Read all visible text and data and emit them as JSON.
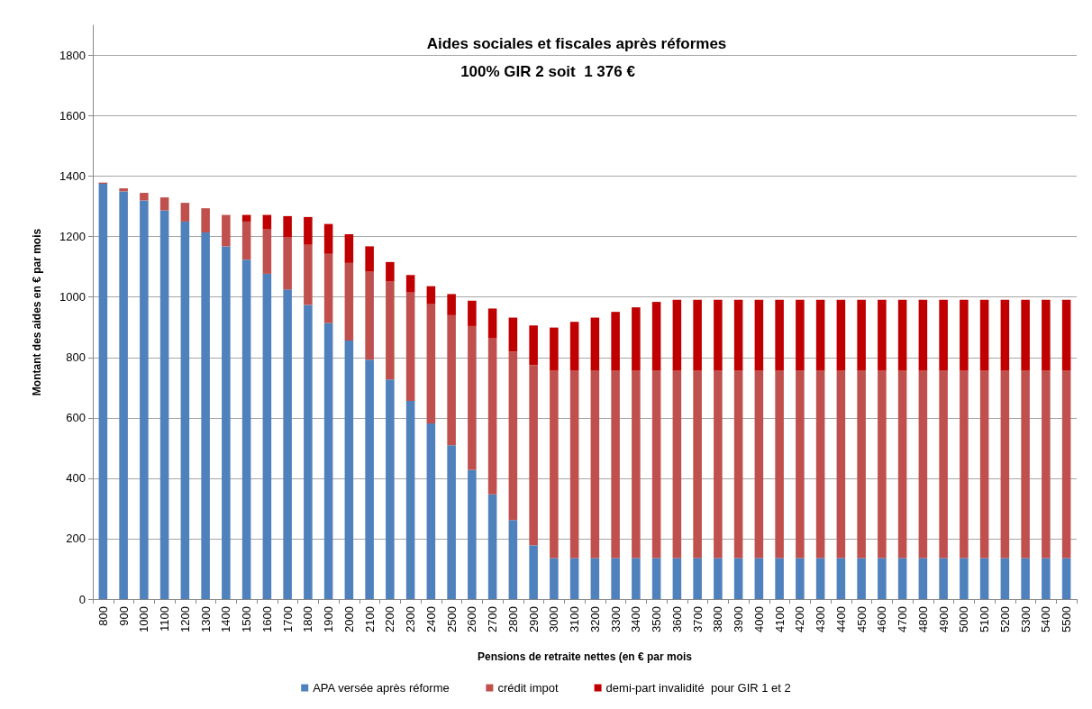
{
  "chart_data": {
    "type": "bar",
    "title": "Aides sociales et fiscales après réformes",
    "subtitle": "100% GIR 2 soit  1 376 €",
    "xlabel": "Pensions de retraite nettes (en € par mois",
    "ylabel": "Montant des aides en € par mois",
    "categories": [
      "800",
      "900",
      "1000",
      "1100",
      "1200",
      "1300",
      "1400",
      "1500",
      "1600",
      "1700",
      "1800",
      "1900",
      "2000",
      "2100",
      "2200",
      "2300",
      "2400",
      "2500",
      "2600",
      "2700",
      "2800",
      "2900",
      "3000",
      "3100",
      "3200",
      "3300",
      "3400",
      "3500",
      "3600",
      "3700",
      "3800",
      "3900",
      "4000",
      "4100",
      "4200",
      "4300",
      "4400",
      "4500",
      "4600",
      "4700",
      "4800",
      "4900",
      "5000",
      "5100",
      "5200",
      "5300",
      "5400",
      "5500"
    ],
    "stacked": true,
    "ylim": [
      0,
      1900
    ],
    "yticks": [
      0,
      200,
      400,
      600,
      800,
      1000,
      1200,
      1400,
      1600,
      1800
    ],
    "grid": "y",
    "legend": "bottom",
    "series": [
      {
        "name": "APA versée après réforme",
        "color": "#4f81bd",
        "values": [
          1375,
          1350,
          1320,
          1287,
          1250,
          1214,
          1168,
          1124,
          1077,
          1025,
          974,
          914,
          856,
          793,
          727,
          656,
          582,
          509,
          428,
          347,
          262,
          178,
          136,
          136,
          136,
          136,
          136,
          136,
          136,
          136,
          136,
          136,
          136,
          136,
          136,
          136,
          136,
          136,
          136,
          136,
          136,
          136,
          136,
          136,
          136,
          136,
          136,
          136
        ]
      },
      {
        "name": "crédit impot",
        "color": "#c0504d",
        "values": [
          4,
          10,
          25,
          43,
          62,
          80,
          104,
          126,
          147,
          174,
          199,
          229,
          257,
          291,
          324,
          359,
          396,
          431,
          476,
          516,
          557,
          597,
          620,
          620,
          620,
          620,
          620,
          620,
          620,
          620,
          620,
          620,
          620,
          620,
          620,
          620,
          620,
          620,
          620,
          620,
          620,
          620,
          620,
          620,
          620,
          620,
          620,
          620
        ]
      },
      {
        "name": "demi-part invalidité  pour GIR 1 et 2",
        "color": "#c00000",
        "values": [
          null,
          null,
          null,
          null,
          null,
          null,
          null,
          22,
          48,
          69,
          92,
          99,
          95,
          84,
          65,
          58,
          58,
          70,
          84,
          99,
          113,
          131,
          143,
          162,
          176,
          195,
          210,
          228,
          235,
          235,
          235,
          235,
          235,
          235,
          235,
          235,
          235,
          235,
          235,
          235,
          235,
          235,
          235,
          235,
          235,
          235,
          235,
          235
        ]
      }
    ]
  }
}
